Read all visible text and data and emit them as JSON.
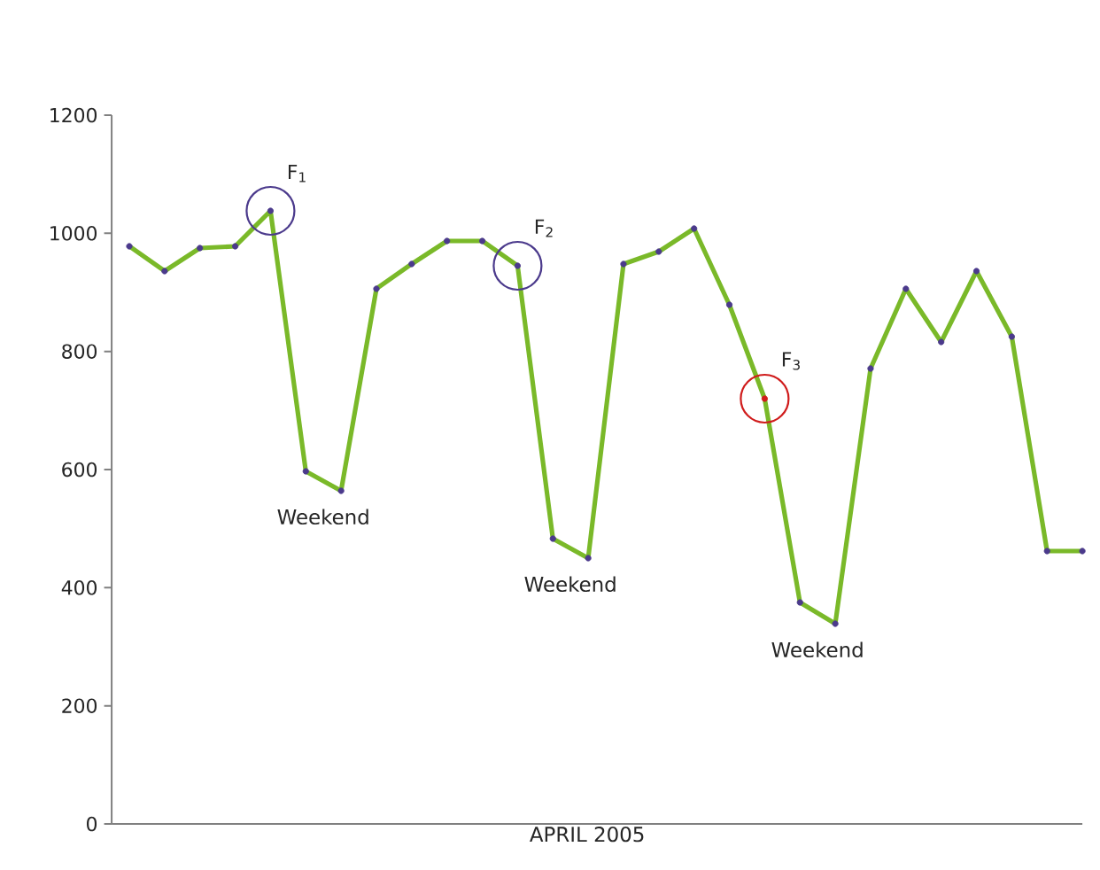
{
  "chart_data": {
    "type": "line",
    "xlabel": "APRIL 2005",
    "categories": [
      null,
      null,
      null,
      null,
      null,
      null,
      null,
      null,
      null,
      null,
      null,
      null,
      null,
      null,
      null,
      null,
      null,
      null,
      null,
      null,
      null,
      null,
      null,
      null,
      null,
      null,
      null,
      null
    ],
    "series": [
      {
        "color": "#7ab929",
        "values": [
          978,
          936,
          975,
          978,
          1038,
          597,
          564,
          906,
          948,
          987,
          987,
          945,
          483,
          450,
          948,
          969,
          1008,
          879,
          720,
          375,
          339,
          771,
          906,
          816,
          936,
          825,
          462,
          462
        ],
        "colors": [
          "#4b3a8c",
          "#4b3a8c",
          "#4b3a8c",
          "#4b3a8c",
          "#4b3a8c",
          "#4b3a8c",
          "#4b3a8c",
          "#4b3a8c",
          "#4b3a8c",
          "#4b3a8c",
          "#4b3a8c",
          "#4b3a8c",
          "#4b3a8c",
          "#4b3a8c",
          "#4b3a8c",
          "#4b3a8c",
          "#4b3a8c",
          "#4b3a8c",
          "#d01c1c",
          "#4b3a8c",
          "#4b3a8c",
          "#4b3a8c",
          "#4b3a8c",
          "#4b3a8c",
          "#4b3a8c",
          "#4b3a8c",
          "#4b3a8c",
          "#4b3a8c"
        ]
      }
    ],
    "ylim": [
      0,
      1200
    ],
    "yticks": [
      0,
      200,
      400,
      600,
      800,
      1000,
      1200
    ],
    "tick_labels": "y",
    "marker": "circle",
    "line_style": "solid",
    "annotations": [
      "F$_{1}$",
      "F$_{2}$",
      "F$_{3}$",
      "Weekend",
      "Weekend",
      "Weekend"
    ]
  }
}
